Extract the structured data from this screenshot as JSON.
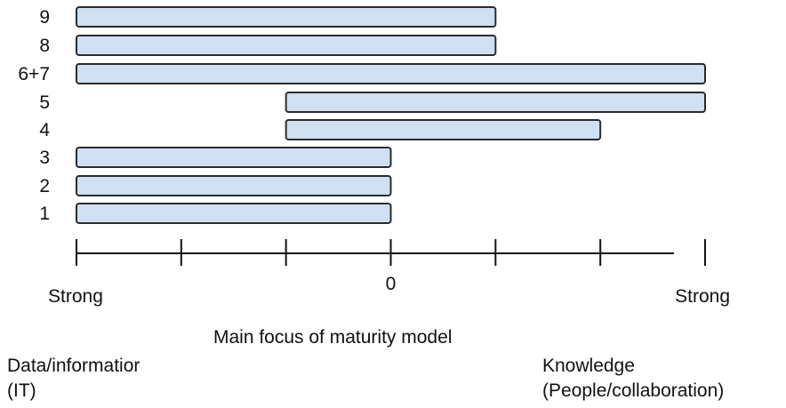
{
  "chart_data": {
    "type": "bar",
    "orientation": "horizontal-range",
    "categories": [
      "9",
      "8",
      "6+7",
      "5",
      "4",
      "3",
      "2",
      "1"
    ],
    "ranges": [
      {
        "category": "9",
        "start": -3,
        "end": 1
      },
      {
        "category": "8",
        "start": -3,
        "end": 1
      },
      {
        "category": "6+7",
        "start": -3,
        "end": 3
      },
      {
        "category": "5",
        "start": -1,
        "end": 3
      },
      {
        "category": "4",
        "start": -1,
        "end": 2
      },
      {
        "category": "3",
        "start": -3,
        "end": 0
      },
      {
        "category": "2",
        "start": -3,
        "end": 0
      },
      {
        "category": "1",
        "start": -3,
        "end": 0
      }
    ],
    "xlim": [
      -3,
      3
    ],
    "x_ticks": [
      -3,
      -2,
      -1,
      0,
      1,
      2,
      3
    ],
    "x_tick_labels": [
      {
        "value": -3,
        "text": "Strong"
      },
      {
        "value": 0,
        "text": "0"
      },
      {
        "value": 3,
        "text": "Strong"
      }
    ],
    "xlabel": "Main focus of maturity model",
    "left_end_label": [
      "Data/informatior",
      "(IT)"
    ],
    "right_end_label": [
      "Knowledge",
      "(People/collaboration)"
    ],
    "grid": false,
    "legend": "none",
    "colors": {
      "bar_fill": "#cfe0f3",
      "bar_stroke": "#2b2b2b",
      "axis": "#111111"
    }
  }
}
